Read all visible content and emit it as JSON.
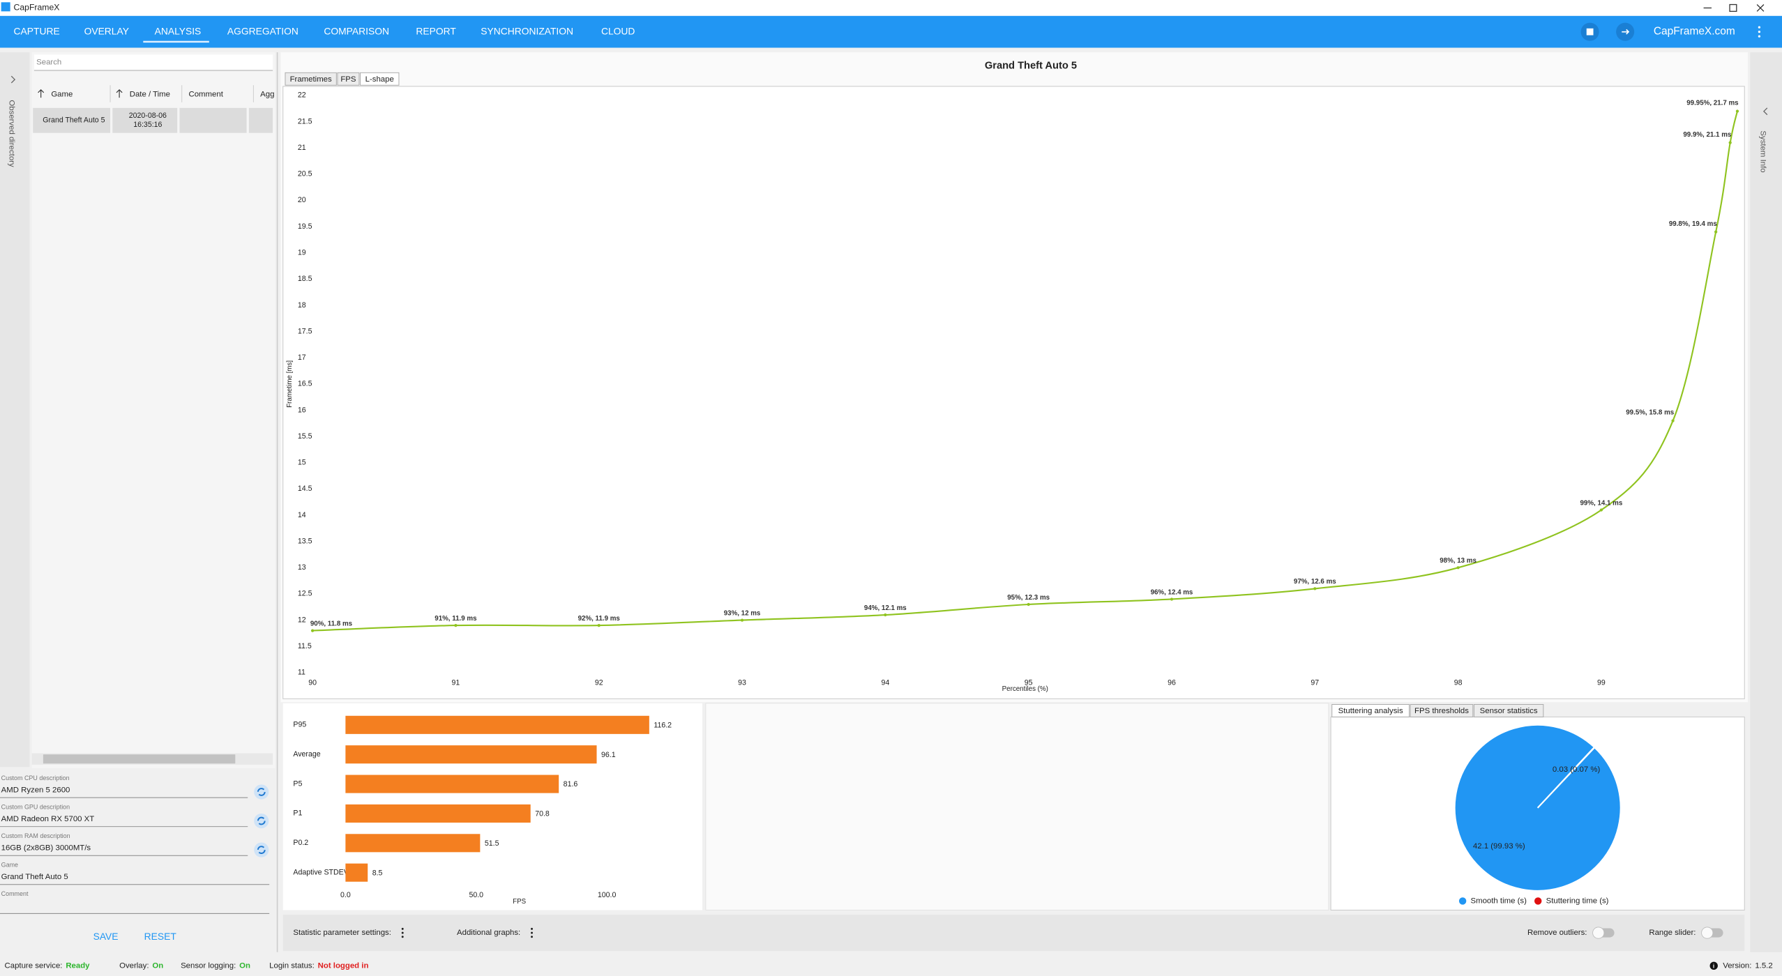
{
  "window": {
    "title": "CapFrameX"
  },
  "nav": {
    "tabs": [
      "CAPTURE",
      "OVERLAY",
      "ANALYSIS",
      "AGGREGATION",
      "COMPARISON",
      "REPORT",
      "SYNCHRONIZATION",
      "CLOUD"
    ],
    "link": "CapFrameX.com"
  },
  "sidebar": {
    "left": "Observed directory",
    "right": "System Info"
  },
  "search": {
    "placeholder": "Search"
  },
  "table": {
    "headers": [
      "Game",
      "Date / Time",
      "Comment",
      "Agg"
    ],
    "rows": [
      {
        "game": "Grand Theft Auto 5",
        "date": "2020-08-06",
        "time": "16:35:16"
      }
    ]
  },
  "fields": [
    {
      "label": "Custom CPU description",
      "value": "AMD Ryzen 5 2600"
    },
    {
      "label": "Custom GPU description",
      "value": "AMD Radeon RX 5700 XT"
    },
    {
      "label": "Custom RAM description",
      "value": "16GB (2x8GB) 3000MT/s"
    },
    {
      "label": "Game",
      "value": "Grand Theft Auto 5"
    },
    {
      "label": "Comment"
    }
  ],
  "buttons": [
    "SAVE",
    "RESET"
  ],
  "chart_tabs": [
    "Frametimes",
    "FPS",
    "L-shape"
  ],
  "stat_tabs": [
    "Stuttering analysis",
    "FPS thresholds",
    "Sensor statistics"
  ],
  "toolbar": {
    "left": [
      "Statistic parameter settings:",
      "Additional graphs:"
    ],
    "right": [
      "Remove outliers:",
      "Range slider:"
    ]
  },
  "status": [
    {
      "label": "Capture service:",
      "value": "Ready",
      "color": "#2db52d"
    },
    {
      "label": "Overlay:",
      "value": "On",
      "color": "#2db52d"
    },
    {
      "label": "Sensor logging:",
      "value": "On",
      "color": "#2db52d"
    },
    {
      "label": "Login status:",
      "value": "Not logged in",
      "color": "#e02020"
    }
  ],
  "version": {
    "label": "Version:",
    "value": "1.5.2"
  },
  "chart_data": [
    {
      "type": "line",
      "title": "Grand Theft Auto 5",
      "x_label": "Percentiles (%)",
      "y_label": "Frametime [ms]",
      "x": [
        90,
        91,
        92,
        93,
        94,
        95,
        96,
        97,
        98,
        99,
        99.5,
        99.8,
        99.9,
        99.95
      ],
      "values": [
        11.8,
        11.9,
        11.9,
        12,
        12.1,
        12.3,
        12.4,
        12.6,
        13,
        14.1,
        15.8,
        19.4,
        21.1,
        21.7
      ],
      "value_labels": [
        "90%, 11.8 ms",
        "91%, 11.9 ms",
        "92%, 11.9 ms",
        "93%, 12 ms",
        "94%, 12.1 ms",
        "95%, 12.3 ms",
        "96%, 12.4 ms",
        "97%, 12.6 ms",
        "98%, 13 ms",
        "99%, 14.1 ms",
        "99.5%, 15.8 ms",
        "99.8%, 19.4 ms",
        "99.9%, 21.1 ms",
        "99.95%, 21.7 ms"
      ],
      "color": "#8fc31f",
      "xlim": [
        90,
        100
      ],
      "xticks": [
        90,
        91,
        92,
        93,
        94,
        95,
        96,
        97,
        98,
        99
      ],
      "ylim": [
        11,
        22
      ],
      "yticks": [
        11,
        11.5,
        12,
        12.5,
        13,
        13.5,
        14,
        14.5,
        15,
        15.5,
        16,
        16.5,
        17,
        17.5,
        18,
        18.5,
        19,
        19.5,
        20,
        20.5,
        21,
        21.5,
        22
      ],
      "grid": false
    },
    {
      "type": "bar",
      "orientation": "horizontal",
      "x_label": "FPS",
      "categories": [
        "P95",
        "Average",
        "P5",
        "P1",
        "P0.2",
        "Adaptive STDEV"
      ],
      "values": [
        116.2,
        96.1,
        81.6,
        70.8,
        51.5,
        8.5
      ],
      "color": "#f47f20",
      "xlim": [
        0,
        120
      ],
      "xticks": [
        {
          "value": 0,
          "label": "0.0"
        },
        {
          "value": 50,
          "label": "50.0"
        },
        {
          "value": 100,
          "label": "100.0"
        }
      ]
    },
    {
      "type": "pie",
      "categories": [
        "Smooth time (s)",
        "Stuttering time (s)"
      ],
      "values": [
        42.1,
        0.03
      ],
      "value_labels": [
        "42.1 (99.93 %)",
        "0.03 (0.07 %)"
      ],
      "colors": [
        "#2196f3",
        "#e01010"
      ]
    }
  ]
}
